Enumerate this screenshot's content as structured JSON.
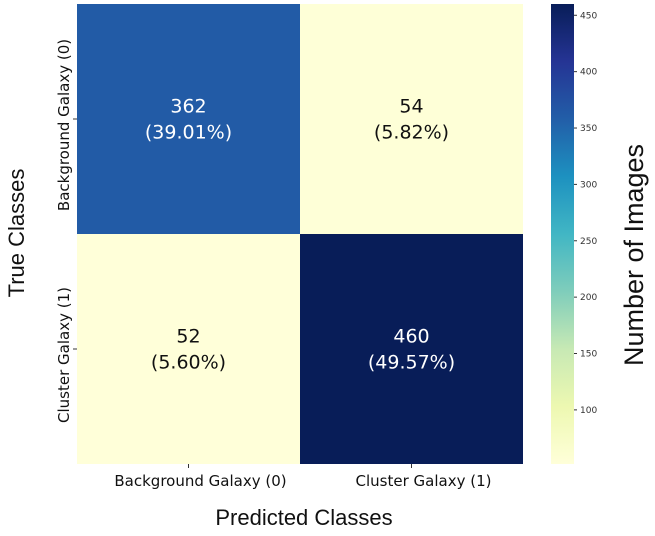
{
  "chart_data": {
    "type": "heatmap",
    "xlabel": "Predicted Classes",
    "ylabel": "True Classes",
    "x_categories": [
      "Background Galaxy (0)",
      "Cluster Galaxy (1)"
    ],
    "y_categories": [
      "Background Galaxy (0)",
      "Cluster Galaxy (1)"
    ],
    "matrix": [
      [
        362,
        54
      ],
      [
        52,
        460
      ]
    ],
    "cell_labels": [
      [
        {
          "count": "362",
          "percent": "(39.01%)"
        },
        {
          "count": "54",
          "percent": "(5.82%)"
        }
      ],
      [
        {
          "count": "52",
          "percent": "(5.60%)"
        },
        {
          "count": "460",
          "percent": "(49.57%)"
        }
      ]
    ],
    "colorbar": {
      "label": "Number of Images",
      "colormap": "YlGnBu",
      "range": [
        52,
        460
      ],
      "ticks": [
        "100",
        "150",
        "200",
        "250",
        "300",
        "350",
        "400",
        "450"
      ]
    }
  }
}
